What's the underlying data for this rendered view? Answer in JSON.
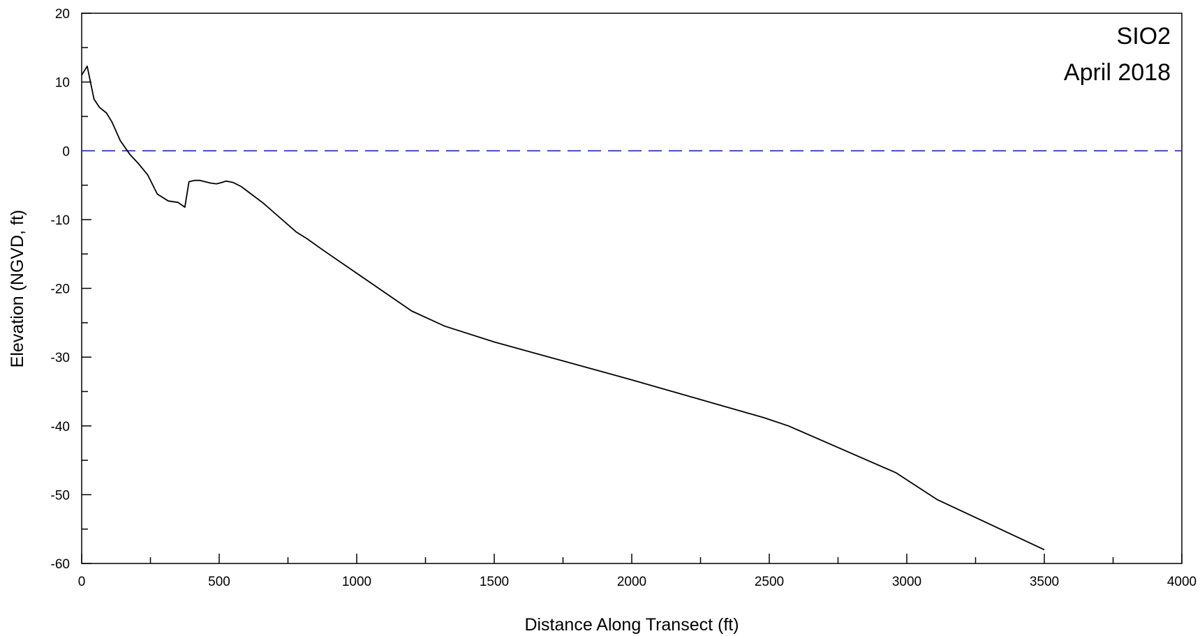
{
  "chart_data": {
    "type": "line",
    "title": "",
    "xlabel": "Distance Along Transect (ft)",
    "ylabel": "Elevation (NGVD, ft)",
    "xlim": [
      0,
      4000
    ],
    "ylim": [
      -60,
      20
    ],
    "x_major_ticks": [
      0,
      500,
      1000,
      1500,
      2000,
      2500,
      3000,
      3500,
      4000
    ],
    "x_tick_labels": [
      "0",
      "500",
      "1000",
      "1500",
      "2000",
      "2500",
      "3000",
      "3500",
      "4000"
    ],
    "y_major_ticks": [
      20,
      10,
      0,
      -10,
      -20,
      -30,
      -40,
      -50,
      -60
    ],
    "y_tick_labels": [
      "20",
      "10",
      "0",
      "-10",
      "-20",
      "-30",
      "-40",
      "-50",
      "-60"
    ],
    "grid": false,
    "annotations": [
      "SIO2",
      "April 2018"
    ],
    "reference_line": {
      "y": 0,
      "style": "dashed",
      "color": "#2b2bd6"
    },
    "series": [
      {
        "color": "#000000",
        "x": [
          0,
          20,
          45,
          65,
          90,
          110,
          140,
          175,
          205,
          240,
          275,
          315,
          350,
          375,
          390,
          410,
          430,
          470,
          490,
          510,
          525,
          550,
          580,
          620,
          660,
          700,
          780,
          820,
          880,
          1200,
          1320,
          1500,
          2000,
          2480,
          2570,
          2960,
          3110,
          3500
        ],
        "y": [
          11,
          12.3,
          7.5,
          6.3,
          5.5,
          4.2,
          1.5,
          -0.5,
          -1.8,
          -3.5,
          -6.3,
          -7.3,
          -7.5,
          -8.2,
          -4.5,
          -4.3,
          -4.3,
          -4.7,
          -4.8,
          -4.6,
          -4.4,
          -4.6,
          -5.2,
          -6.4,
          -7.6,
          -9,
          -11.8,
          -12.8,
          -14.5,
          -23.3,
          -25.5,
          -27.8,
          -33.3,
          -38.8,
          -40,
          -46.8,
          -50.7,
          -58
        ]
      }
    ]
  }
}
